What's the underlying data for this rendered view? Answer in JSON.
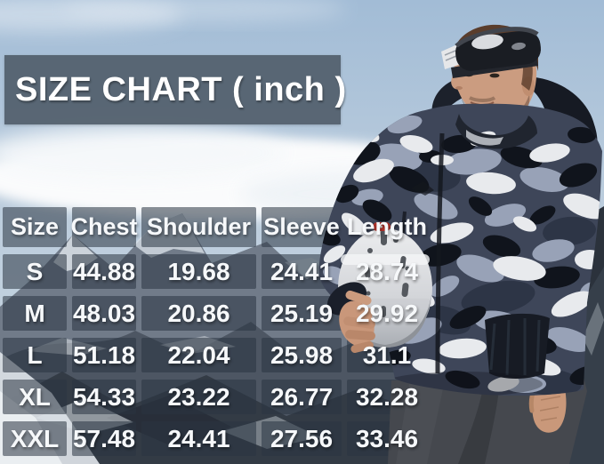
{
  "title": "SIZE CHART ( inch )",
  "table": {
    "columns": [
      "Size",
      "Chest",
      "Shoulder",
      "Sleeve",
      "Length"
    ],
    "rows": [
      [
        "S",
        "44.88",
        "19.68",
        "24.41",
        "28.74"
      ],
      [
        "M",
        "48.03",
        "20.86",
        "25.19",
        "29.92"
      ],
      [
        "L",
        "51.18",
        "22.04",
        "25.98",
        "31.1"
      ],
      [
        "XL",
        "54.33",
        "23.22",
        "26.77",
        "32.28"
      ],
      [
        "XXL",
        "57.48",
        "24.41",
        "27.56",
        "33.46"
      ]
    ]
  },
  "chart_data": {
    "type": "table",
    "title": "SIZE CHART ( inch )",
    "unit": "inch",
    "columns": [
      "Size",
      "Chest",
      "Shoulder",
      "Sleeve",
      "Length"
    ],
    "rows": [
      [
        "S",
        44.88,
        19.68,
        24.41,
        28.74
      ],
      [
        "M",
        48.03,
        20.86,
        25.19,
        29.92
      ],
      [
        "L",
        51.18,
        22.04,
        25.98,
        31.1
      ],
      [
        "XL",
        54.33,
        23.22,
        26.77,
        32.28
      ],
      [
        "XXL",
        57.48,
        24.41,
        27.56,
        33.46
      ]
    ]
  },
  "colors": {
    "title_bg": "#525f6c",
    "cell_bg": "rgba(42,53,66,0.55)",
    "table_text": "#f6f8fa",
    "helmet_logo_red": "#b5342c",
    "sky": "#a9c2da"
  }
}
